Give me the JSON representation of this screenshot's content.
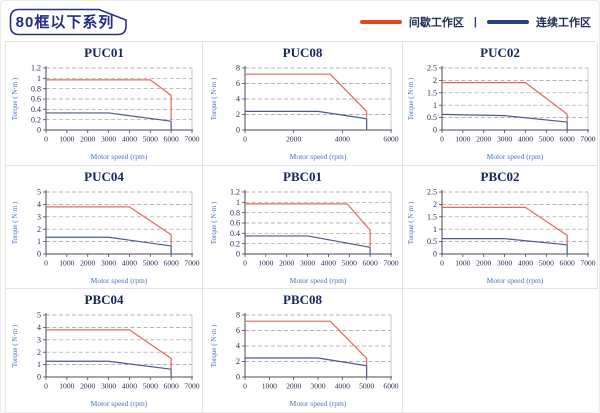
{
  "header": {
    "title": "80框以下系列"
  },
  "legend": {
    "separator": "|",
    "items": [
      {
        "label": "间歇工作区",
        "color": "#e8451c"
      },
      {
        "label": "连续工作区",
        "color": "#24407e"
      }
    ]
  },
  "chart_data": [
    {
      "type": "line",
      "title": "PUC01",
      "xlabel": "Motor speed (rpm)",
      "ylabel": "Torque ( N·m )",
      "xlim": [
        0,
        7000
      ],
      "xticks": [
        0,
        1000,
        2000,
        3000,
        4000,
        5000,
        6000,
        7000
      ],
      "ylim": [
        0,
        1.2
      ],
      "yticks": [
        0,
        0.2,
        0.4,
        0.6,
        0.8,
        1,
        1.2
      ],
      "grid": "horizontal-dashed",
      "legend_position": "none",
      "series": [
        {
          "name": "间歇工作区",
          "color": "#e4685c",
          "points": [
            [
              0,
              0.97
            ],
            [
              5000,
              0.97
            ],
            [
              6000,
              0.67
            ],
            [
              6000,
              0.2
            ]
          ]
        },
        {
          "name": "连续工作区",
          "color": "#4a5a8f",
          "points": [
            [
              0,
              0.33
            ],
            [
              3000,
              0.33
            ],
            [
              6000,
              0.17
            ],
            [
              6000,
              0
            ]
          ]
        }
      ]
    },
    {
      "type": "line",
      "title": "PUC08",
      "xlabel": "Motor speed (rpm)",
      "ylabel": "Torque ( N·m )",
      "xlim": [
        0,
        6000
      ],
      "xticks": [
        0,
        2000,
        4000,
        6000
      ],
      "ylim": [
        0,
        8
      ],
      "yticks": [
        0,
        2,
        4,
        6,
        8
      ],
      "grid": "horizontal-dashed",
      "legend_position": "none",
      "series": [
        {
          "name": "间歇工作区",
          "color": "#e4685c",
          "points": [
            [
              0,
              7.2
            ],
            [
              3500,
              7.2
            ],
            [
              5000,
              2.4
            ],
            [
              5000,
              1.6
            ]
          ]
        },
        {
          "name": "连续工作区",
          "color": "#4a5a8f",
          "points": [
            [
              0,
              2.4
            ],
            [
              3000,
              2.4
            ],
            [
              5000,
              1.45
            ],
            [
              5000,
              0
            ]
          ]
        }
      ]
    },
    {
      "type": "line",
      "title": "PUC02",
      "xlabel": "Motor speed (rpm)",
      "ylabel": "Torque ( N·m )",
      "xlim": [
        0,
        7000
      ],
      "xticks": [
        0,
        1000,
        2000,
        3000,
        4000,
        5000,
        6000,
        7000
      ],
      "ylim": [
        0,
        2.5
      ],
      "yticks": [
        0,
        0.5,
        1,
        1.5,
        2,
        2.5
      ],
      "grid": "horizontal-dashed",
      "legend_position": "none",
      "series": [
        {
          "name": "间歇工作区",
          "color": "#e4685c",
          "points": [
            [
              0,
              1.91
            ],
            [
              4000,
              1.91
            ],
            [
              6000,
              0.64
            ],
            [
              6000,
              0.35
            ]
          ]
        },
        {
          "name": "连续工作区",
          "color": "#4a5a8f",
          "points": [
            [
              0,
              0.63
            ],
            [
              3000,
              0.58
            ],
            [
              6000,
              0.32
            ],
            [
              6000,
              0
            ]
          ]
        }
      ]
    },
    {
      "type": "line",
      "title": "PUC04",
      "xlabel": "Motor speed (rpm)",
      "ylabel": "Torque ( N·m )",
      "xlim": [
        0,
        7000
      ],
      "xticks": [
        0,
        1000,
        2000,
        3000,
        4000,
        5000,
        6000,
        7000
      ],
      "ylim": [
        0,
        5
      ],
      "yticks": [
        0,
        1,
        2,
        3,
        4,
        5
      ],
      "grid": "horizontal-dashed",
      "legend_position": "none",
      "series": [
        {
          "name": "间歇工作区",
          "color": "#e4685c",
          "points": [
            [
              0,
              3.8
            ],
            [
              4000,
              3.8
            ],
            [
              6000,
              1.55
            ],
            [
              6000,
              0.7
            ]
          ]
        },
        {
          "name": "连续工作区",
          "color": "#4a5a8f",
          "points": [
            [
              0,
              1.35
            ],
            [
              3000,
              1.35
            ],
            [
              6000,
              0.65
            ],
            [
              6000,
              0
            ]
          ]
        }
      ]
    },
    {
      "type": "line",
      "title": "PBC01",
      "xlabel": "Motor speed (rpm)",
      "ylabel": "Torque ( N·m )",
      "xlim": [
        0,
        7000
      ],
      "xticks": [
        0,
        1000,
        2000,
        3000,
        4000,
        5000,
        6000,
        7000
      ],
      "ylim": [
        0,
        1.2
      ],
      "yticks": [
        0,
        0.2,
        0.4,
        0.6,
        0.8,
        1,
        1.2
      ],
      "grid": "horizontal-dashed",
      "legend_position": "none",
      "series": [
        {
          "name": "间歇工作区",
          "color": "#e4685c",
          "points": [
            [
              0,
              0.97
            ],
            [
              4900,
              0.97
            ],
            [
              6000,
              0.46
            ],
            [
              6000,
              0.15
            ]
          ]
        },
        {
          "name": "连续工作区",
          "color": "#4a5a8f",
          "points": [
            [
              0,
              0.35
            ],
            [
              3000,
              0.35
            ],
            [
              6000,
              0.13
            ],
            [
              6000,
              0
            ]
          ]
        }
      ]
    },
    {
      "type": "line",
      "title": "PBC02",
      "xlabel": "Motor speed (rpm)",
      "ylabel": "Torque ( N·m )",
      "xlim": [
        0,
        7000
      ],
      "xticks": [
        0,
        1000,
        2000,
        3000,
        4000,
        5000,
        6000,
        7000
      ],
      "ylim": [
        0,
        2.5
      ],
      "yticks": [
        0,
        0.5,
        1,
        1.5,
        2,
        2.5
      ],
      "grid": "horizontal-dashed",
      "legend_position": "none",
      "series": [
        {
          "name": "间歇工作区",
          "color": "#e4685c",
          "points": [
            [
              0,
              1.88
            ],
            [
              4000,
              1.88
            ],
            [
              6000,
              0.75
            ],
            [
              6000,
              0.4
            ]
          ]
        },
        {
          "name": "连续工作区",
          "color": "#4a5a8f",
          "points": [
            [
              0,
              0.62
            ],
            [
              3000,
              0.62
            ],
            [
              6000,
              0.37
            ],
            [
              6000,
              0
            ]
          ]
        }
      ]
    },
    {
      "type": "line",
      "title": "PBC04",
      "xlabel": "Motor speed (rpm)",
      "ylabel": "Torque ( N·m )",
      "xlim": [
        0,
        7000
      ],
      "xticks": [
        0,
        1000,
        2000,
        3000,
        4000,
        5000,
        6000,
        7000
      ],
      "ylim": [
        0,
        5
      ],
      "yticks": [
        0,
        1,
        2,
        3,
        4,
        5
      ],
      "grid": "horizontal-dashed",
      "legend_position": "none",
      "series": [
        {
          "name": "间歇工作区",
          "color": "#e4685c",
          "points": [
            [
              0,
              3.8
            ],
            [
              4000,
              3.8
            ],
            [
              6000,
              1.5
            ],
            [
              6000,
              0.65
            ]
          ]
        },
        {
          "name": "连续工作区",
          "color": "#4a5a8f",
          "points": [
            [
              0,
              1.27
            ],
            [
              3000,
              1.27
            ],
            [
              6000,
              0.63
            ],
            [
              6000,
              0
            ]
          ]
        }
      ]
    },
    {
      "type": "line",
      "title": "PBC08",
      "xlabel": "Motor speed (rpm)",
      "ylabel": "Torque ( N·m )",
      "xlim": [
        0,
        6000
      ],
      "xticks": [
        0,
        1000,
        2000,
        3000,
        4000,
        5000,
        6000
      ],
      "ylim": [
        0,
        8
      ],
      "yticks": [
        0,
        2,
        4,
        6,
        8
      ],
      "grid": "horizontal-dashed",
      "legend_position": "none",
      "series": [
        {
          "name": "间歇工作区",
          "color": "#e4685c",
          "points": [
            [
              0,
              7.2
            ],
            [
              3500,
              7.2
            ],
            [
              5000,
              2.4
            ],
            [
              5000,
              1.5
            ]
          ]
        },
        {
          "name": "连续工作区",
          "color": "#4a5a8f",
          "points": [
            [
              0,
              2.45
            ],
            [
              3000,
              2.45
            ],
            [
              5000,
              1.45
            ],
            [
              5000,
              0
            ]
          ]
        }
      ]
    }
  ]
}
